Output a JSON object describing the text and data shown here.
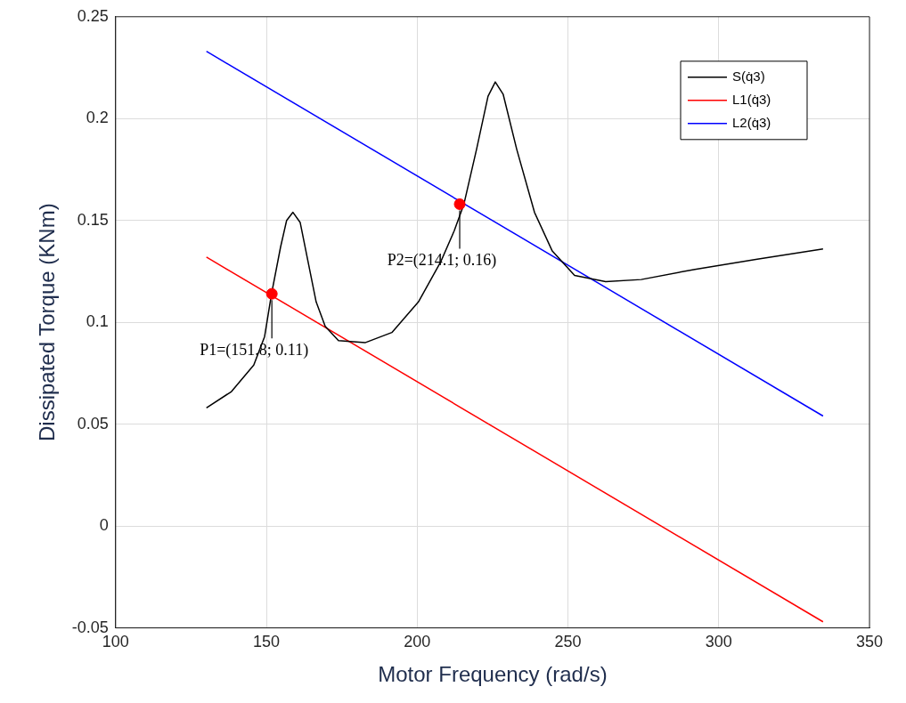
{
  "chart_data": {
    "type": "line",
    "xlabel": "Motor Frequency (rad/s)",
    "ylabel": "Dissipated Torque (KNm)",
    "xlim": [
      100,
      350
    ],
    "xticks": [
      100,
      150,
      200,
      250,
      300,
      350
    ],
    "ylim": [
      -0.05,
      0.25
    ],
    "yticks": [
      -0.05,
      0,
      0.05,
      0.1,
      0.15,
      0.2,
      0.25
    ],
    "grid": true,
    "legend": "top right",
    "line_style": "solid",
    "series": [
      {
        "name": "S(q̇3)",
        "color": "#000000",
        "x": [
          130.1,
          138.4,
          145.8,
          149.4,
          151.7,
          154.7,
          156.7,
          158.8,
          161.2,
          163.5,
          166.5,
          169.5,
          173.9,
          182.7,
          191.6,
          200.4,
          207.9,
          212.3,
          215.5,
          219.7,
          223.5,
          225.9,
          228.5,
          233.0,
          238.9,
          244.8,
          252.2,
          262.5,
          274.3,
          292.1,
          312.8,
          334.6
        ],
        "values": [
          0.058,
          0.066,
          0.079,
          0.093,
          0.114,
          0.137,
          0.15,
          0.154,
          0.149,
          0.132,
          0.11,
          0.098,
          0.091,
          0.09,
          0.095,
          0.11,
          0.13,
          0.145,
          0.158,
          0.185,
          0.211,
          0.218,
          0.212,
          0.185,
          0.154,
          0.135,
          0.123,
          0.12,
          0.121,
          0.126,
          0.131,
          0.136
        ]
      },
      {
        "name": "L1(q̇3)",
        "color": "#ff0000",
        "x": [
          130.1,
          334.6
        ],
        "values": [
          0.132,
          -0.047
        ]
      },
      {
        "name": "L2(q̇3)",
        "color": "#0000ff",
        "x": [
          130.1,
          334.6
        ],
        "values": [
          0.233,
          0.054
        ]
      },
      {
        "type": "scatter",
        "marker": "circle",
        "color": "#ff0000",
        "x": [
          151.8,
          214.1
        ],
        "values": [
          0.114,
          0.158
        ]
      }
    ],
    "annotations": [
      {
        "text": "P1=(151.8; 0.11)",
        "x": 151.8,
        "y": 0.114
      },
      {
        "text": "P2=(214.1; 0.16)",
        "x": 214.1,
        "y": 0.158
      }
    ]
  }
}
